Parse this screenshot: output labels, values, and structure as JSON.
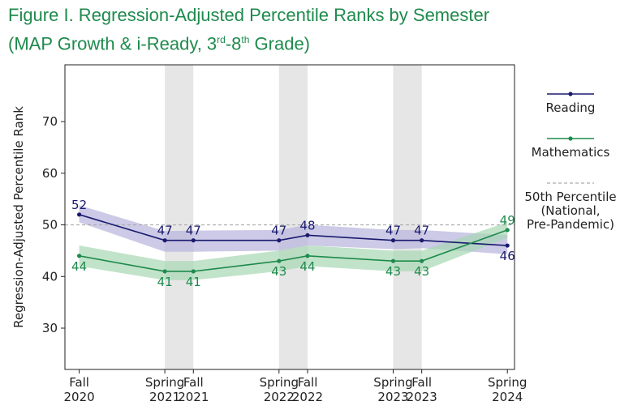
{
  "title": {
    "line1": "Figure I. Regression-Adjusted Percentile Ranks by Semester",
    "line2_prefix": "(MAP Growth & i-Ready, 3",
    "line2_sup1": "rd",
    "line2_mid": "-8",
    "line2_sup2": "th",
    "line2_suffix": " Grade)"
  },
  "colors": {
    "reading": "#1a1a6e",
    "reading_band": "#b6b3dc",
    "math": "#1e8a4c",
    "math_band": "#a7d7b3",
    "reference": "#aaaaaa",
    "spring_shade": "#e6e6e6"
  },
  "chart_data": {
    "type": "line",
    "title": "Figure I. Regression-Adjusted Percentile Ranks by Semester (MAP Growth & i-Ready, 3rd-8th Grade)",
    "ylabel": "Regression-Adjusted Percentile Rank",
    "xlabel": "",
    "ylim": [
      22,
      81
    ],
    "yticks": [
      30,
      40,
      50,
      60,
      70
    ],
    "x": [
      {
        "label1": "Fall",
        "label2": "2020",
        "t": 0
      },
      {
        "label1": "Spring",
        "label2": "2021",
        "t": 3
      },
      {
        "label1": "Fall",
        "label2": "2021",
        "t": 4
      },
      {
        "label1": "Spring",
        "label2": "2022",
        "t": 7
      },
      {
        "label1": "Fall",
        "label2": "2022",
        "t": 8
      },
      {
        "label1": "Spring",
        "label2": "2023",
        "t": 11
      },
      {
        "label1": "Fall",
        "label2": "2023",
        "t": 12
      },
      {
        "label1": "Spring",
        "label2": "2024",
        "t": 15
      }
    ],
    "spring_shading": [
      3,
      7,
      11
    ],
    "reference_line": {
      "value": 50,
      "label": [
        "50th Percentile",
        "(National,",
        "Pre-Pandemic)"
      ]
    },
    "series": [
      {
        "name": "Reading",
        "values": [
          52,
          47,
          47,
          47,
          48,
          47,
          47,
          46
        ],
        "band_low": [
          50.5,
          44.8,
          44.8,
          45.0,
          46.0,
          45.3,
          45.5,
          44.3
        ],
        "band_high": [
          53.8,
          48.8,
          48.9,
          49.0,
          50.0,
          49.0,
          49.0,
          48.0
        ],
        "label_pos": [
          "above",
          "above",
          "above",
          "above",
          "above",
          "above",
          "above",
          "below"
        ]
      },
      {
        "name": "Mathematics",
        "values": [
          44,
          41,
          41,
          43,
          44,
          43,
          43,
          49
        ],
        "band_low": [
          42.0,
          39.3,
          39.3,
          41.0,
          42.0,
          41.0,
          41.0,
          47.5
        ],
        "band_high": [
          46.0,
          43.0,
          43.0,
          45.0,
          46.0,
          45.0,
          45.0,
          50.5
        ],
        "label_pos": [
          "below",
          "below",
          "below",
          "below",
          "below",
          "below",
          "below",
          "above"
        ]
      }
    ],
    "legend_position": "right"
  }
}
